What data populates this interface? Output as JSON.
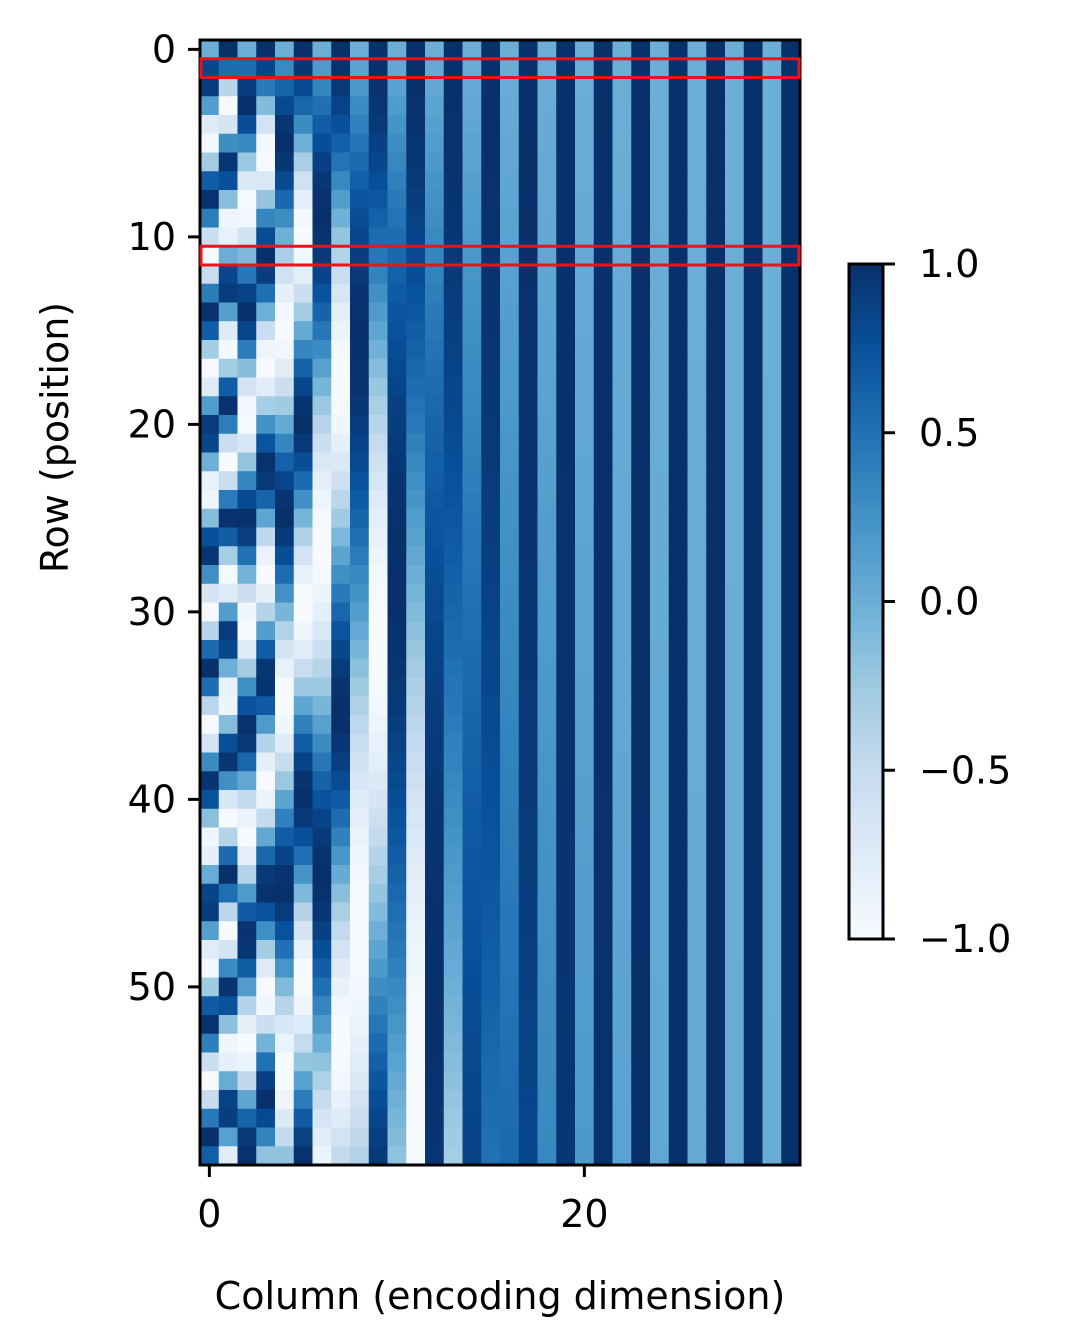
{
  "chart_data": {
    "type": "heatmap",
    "title": "",
    "xlabel": "Column (encoding dimension)",
    "ylabel": "Row (position)",
    "n_rows": 60,
    "n_cols": 32,
    "value_formula": "even column 2i: sin(pos / 10000^(2i/32)); odd column 2i+1: cos(pos / 10000^(2i/32))",
    "x_ticks": [
      0,
      20
    ],
    "x_tick_labels": [
      "0",
      "20"
    ],
    "y_ticks": [
      0,
      10,
      20,
      30,
      40,
      50
    ],
    "y_tick_labels": [
      "0",
      "10",
      "20",
      "30",
      "40",
      "50"
    ],
    "colormap": "Blues",
    "colormap_stops": [
      "#f7fbff",
      "#deebf7",
      "#c6dbef",
      "#9ecae1",
      "#6baed6",
      "#4292c6",
      "#2171b5",
      "#08519c",
      "#08306b"
    ],
    "clim": [
      -1.0,
      1.0
    ],
    "colorbar": {
      "ticks": [
        1.0,
        0.5,
        0.0,
        -0.5,
        -1.0
      ],
      "tick_labels": [
        "1.0",
        "0.5",
        "0.0",
        "−0.5",
        "−1.0"
      ],
      "placement": "right"
    },
    "highlighted_rows": [
      1,
      11
    ],
    "highlight_color": "#e8141c"
  }
}
